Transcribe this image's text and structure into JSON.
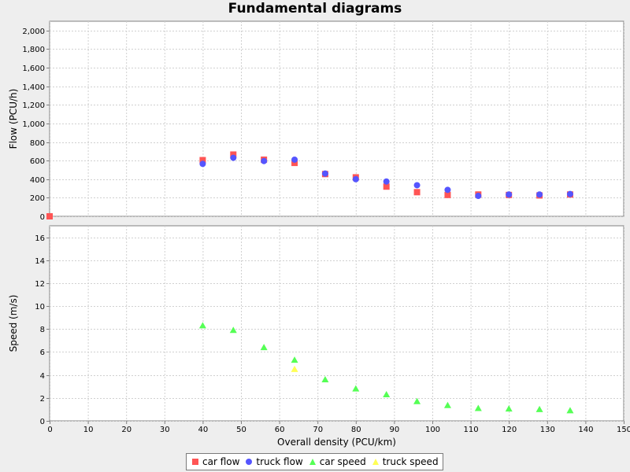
{
  "title": "Fundamental diagrams",
  "legend_items": [
    "car flow",
    "truck flow",
    "car speed",
    "truck speed"
  ],
  "colors": {
    "car_flow": "#ff5555",
    "truck_flow": "#5555ff",
    "car_speed": "#55ff55",
    "truck_speed": "#ffff55"
  },
  "chart_data": [
    {
      "type": "scatter",
      "title": "Fundamental diagrams",
      "xlabel": "Overall density (PCU/km)",
      "ylabel": "Flow (PCU/h)",
      "xlim": [
        0,
        150
      ],
      "ylim": [
        0,
        2100
      ],
      "grid": true,
      "legend": "bottom",
      "x_ticks": [
        "0",
        "10",
        "20",
        "30",
        "40",
        "50",
        "60",
        "70",
        "80",
        "90",
        "100",
        "110",
        "120",
        "130",
        "140",
        "150"
      ],
      "y_ticks": [
        "0",
        "200",
        "400",
        "600",
        "800",
        "1,000",
        "1,200",
        "1,400",
        "1,600",
        "1,800",
        "2,000"
      ],
      "series": [
        {
          "name": "car flow",
          "marker": "square",
          "x": [
            0,
            40,
            48,
            56,
            64,
            72,
            80,
            88,
            96,
            104,
            112,
            120,
            128,
            136
          ],
          "y": [
            0,
            605,
            665,
            610,
            575,
            455,
            420,
            320,
            260,
            230,
            235,
            230,
            225,
            235
          ]
        },
        {
          "name": "truck flow",
          "marker": "circle",
          "x": [
            40,
            48,
            56,
            64,
            72,
            80,
            88,
            96,
            104,
            112,
            120,
            128,
            136
          ],
          "y": [
            565,
            630,
            595,
            610,
            460,
            400,
            375,
            335,
            285,
            220,
            235,
            235,
            240
          ]
        }
      ]
    },
    {
      "type": "scatter",
      "xlabel": "Overall density (PCU/km)",
      "ylabel": "Speed (m/s)",
      "xlim": [
        0,
        150
      ],
      "ylim": [
        0,
        17
      ],
      "grid": true,
      "y_ticks": [
        "0",
        "2",
        "4",
        "6",
        "8",
        "10",
        "12",
        "14",
        "16"
      ],
      "series": [
        {
          "name": "car speed",
          "marker": "triangle",
          "x": [
            40,
            48,
            56,
            64,
            72,
            80,
            88,
            96,
            104,
            112,
            120,
            128,
            136
          ],
          "y": [
            8.3,
            7.9,
            6.4,
            5.3,
            3.6,
            2.8,
            2.3,
            1.7,
            1.35,
            1.1,
            1.05,
            1.0,
            0.9
          ]
        },
        {
          "name": "truck speed",
          "marker": "triangle",
          "x": [
            64
          ],
          "y": [
            4.5
          ]
        }
      ]
    }
  ]
}
